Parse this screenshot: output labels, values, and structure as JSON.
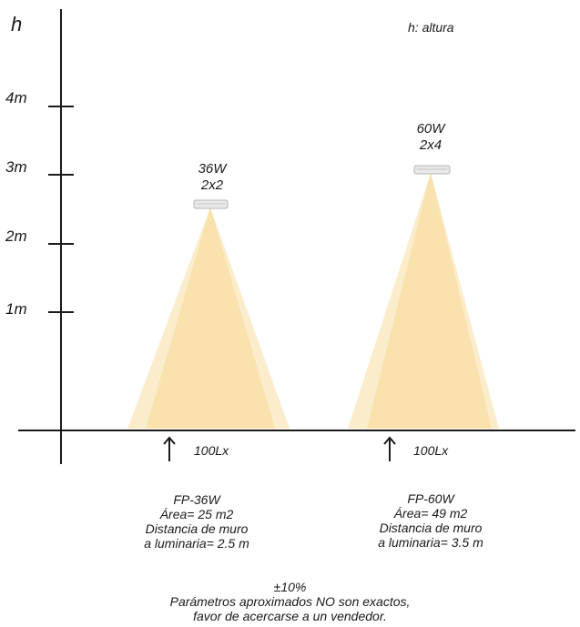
{
  "axis": {
    "title": "h",
    "legend": "h: altura",
    "ticks": [
      "4m",
      "3m",
      "2m",
      "1m"
    ]
  },
  "luminaires": [
    {
      "watts": "36W",
      "config": "2x2",
      "lux": "100Lx",
      "info": [
        "FP-36W",
        "Área= 25 m2",
        "Distancia de muro",
        "a luminaria= 2.5 m"
      ]
    },
    {
      "watts": "60W",
      "config": "2x4",
      "lux": "100Lx",
      "info": [
        "FP-60W",
        "Área= 49 m2",
        "Distancia de muro",
        "a luminaria= 3.5 m"
      ]
    }
  ],
  "disclaimer": [
    "±10%",
    "Parámetros aproximados NO son exactos,",
    "favor de acercarse a un vendedor."
  ],
  "colors": {
    "axis": "#1a1a1a",
    "light_outer": "#fbeccc",
    "light_inner": "#f8e0a8",
    "fixture": "#e8e8e8"
  }
}
